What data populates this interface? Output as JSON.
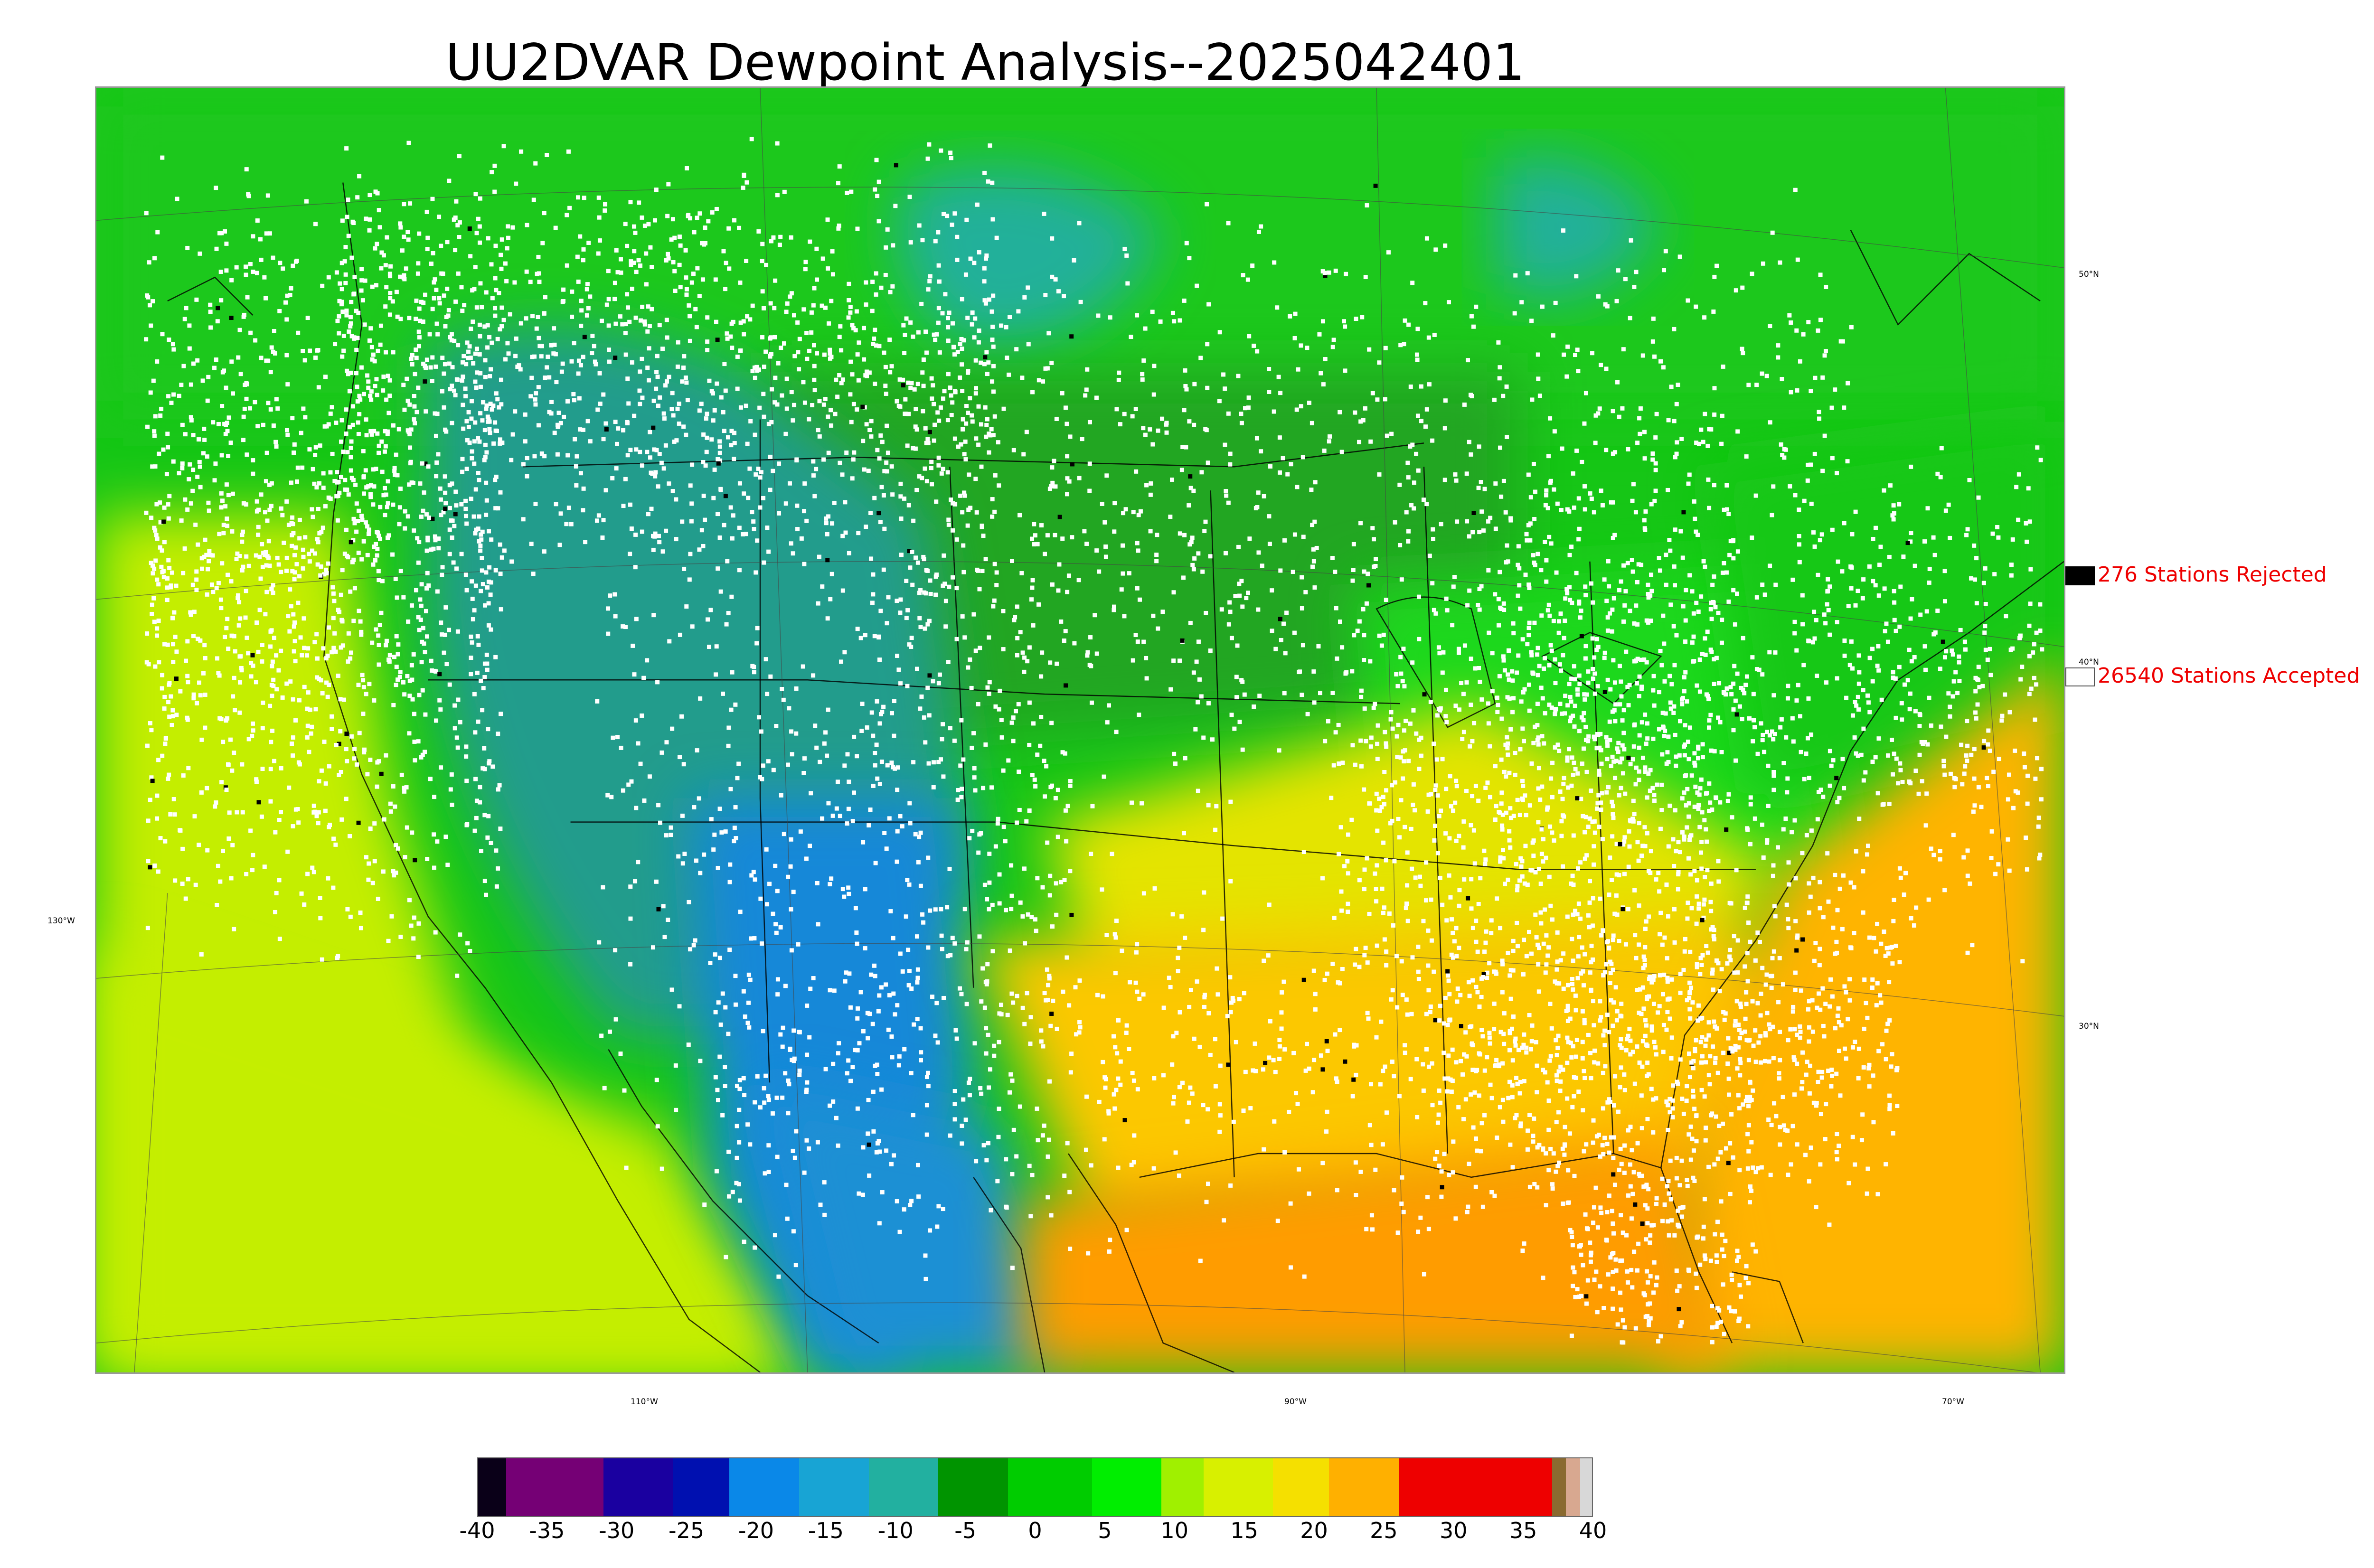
{
  "title": "UU2DVAR Dewpoint Analysis--2025042401",
  "map": {
    "lat_labels": [
      "50°N",
      "40°N",
      "30°N"
    ],
    "lon_labels": [
      "130°W",
      "110°W",
      "90°W",
      "70°W"
    ],
    "colors": {
      "land_boundary": "#000000",
      "accepted_station": "#ffffff",
      "rejected_station": "#000000"
    }
  },
  "legend": {
    "rejected": {
      "label": "276 Stations Rejected",
      "swatch_color": "#000000"
    },
    "accepted": {
      "label": "26540 Stations Accepted",
      "swatch_color": "#ffffff"
    }
  },
  "colorbar": {
    "min": -40,
    "max": 40,
    "tick_labels": [
      "-40",
      "-35",
      "-30",
      "-25",
      "-20",
      "-15",
      "-10",
      "-5",
      "0",
      "5",
      "10",
      "15",
      "20",
      "25",
      "30",
      "35",
      "40"
    ],
    "bands": [
      {
        "from": -40,
        "to": -38,
        "color": "#0a0018"
      },
      {
        "from": -38,
        "to": -31,
        "color": "#750075"
      },
      {
        "from": -31,
        "to": -26,
        "color": "#1a00a0"
      },
      {
        "from": -26,
        "to": -22,
        "color": "#0010b0"
      },
      {
        "from": -22,
        "to": -17,
        "color": "#0a88e8"
      },
      {
        "from": -17,
        "to": -12,
        "color": "#18a4d4"
      },
      {
        "from": -12,
        "to": -7,
        "color": "#22b0a0"
      },
      {
        "from": -7,
        "to": -2,
        "color": "#009400"
      },
      {
        "from": -2,
        "to": 4,
        "color": "#00cc00"
      },
      {
        "from": 4,
        "to": 9,
        "color": "#00ee00"
      },
      {
        "from": 9,
        "to": 12,
        "color": "#a0f000"
      },
      {
        "from": 12,
        "to": 17,
        "color": "#d8f000"
      },
      {
        "from": 17,
        "to": 21,
        "color": "#f5e000"
      },
      {
        "from": 21,
        "to": 26,
        "color": "#ffb000"
      },
      {
        "from": 26,
        "to": 37,
        "color": "#ee0000"
      },
      {
        "from": 37,
        "to": 38,
        "color": "#8a6a30"
      },
      {
        "from": 38,
        "to": 39,
        "color": "#d8a890"
      },
      {
        "from": 39,
        "to": 40,
        "color": "#d8d8d8"
      }
    ]
  },
  "field_colors": {
    "pacific_ocean": "#c4ee00",
    "canada": "#16c616",
    "canada_north": "#1ec81e",
    "hudson_teal": "#20b09a",
    "northern_plains": "#22a622",
    "midwest": "#1ed81e",
    "northeast": "#14c814",
    "intermountain": "#229c8c",
    "southwest_blue": "#1888d8",
    "mexico_plateau": "#1a90d4",
    "southeast": "#fcc800",
    "gulf_mexico": "#ff9c00",
    "atlantic": "#ffb400",
    "central_yellow": "#e4e400"
  }
}
